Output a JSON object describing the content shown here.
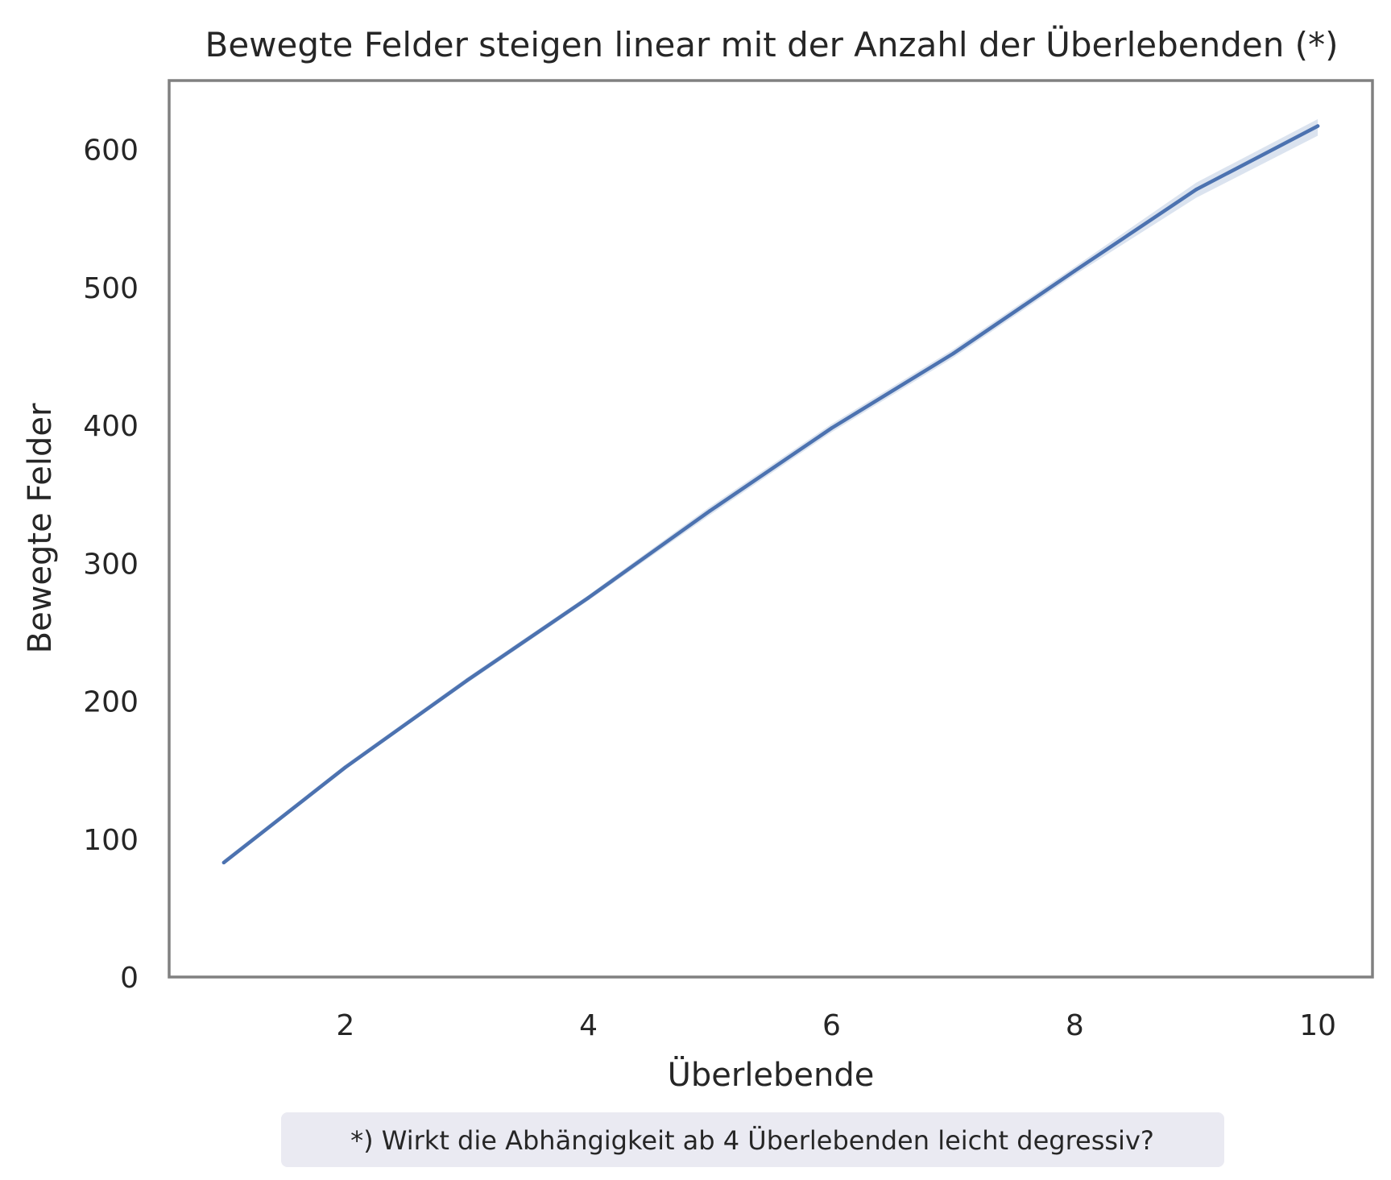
{
  "chart_data": {
    "type": "line",
    "title": "Bewegte Felder steigen linear mit der Anzahl der Überlebenden (*)",
    "xlabel": "Überlebende",
    "ylabel": "Bewegte Felder",
    "x": [
      1,
      2,
      3,
      4,
      5,
      6,
      7,
      8,
      9,
      10
    ],
    "series": [
      {
        "values": [
          83,
          152,
          215,
          275,
          338,
          398,
          452,
          512,
          571,
          617
        ],
        "ci_lower": [
          82,
          151,
          213,
          273,
          335,
          395,
          449,
          509,
          565,
          610
        ],
        "ci_upper": [
          85,
          154,
          217,
          277,
          341,
          401,
          455,
          515,
          576,
          622
        ],
        "color": "#4c72b0"
      }
    ],
    "xlim": [
      0.55,
      10.45
    ],
    "ylim": [
      0,
      650
    ],
    "xticks": [
      "2",
      "4",
      "6",
      "8",
      "10"
    ],
    "yticks": [
      "0",
      "100",
      "200",
      "300",
      "400",
      "500",
      "600"
    ],
    "grid": false,
    "frame_color": "#808080",
    "footnote": "*) Wirkt die Abhängigkeit ab 4 Überlebenden leicht degressiv?",
    "footnote_bg": "#eaeaf2"
  }
}
